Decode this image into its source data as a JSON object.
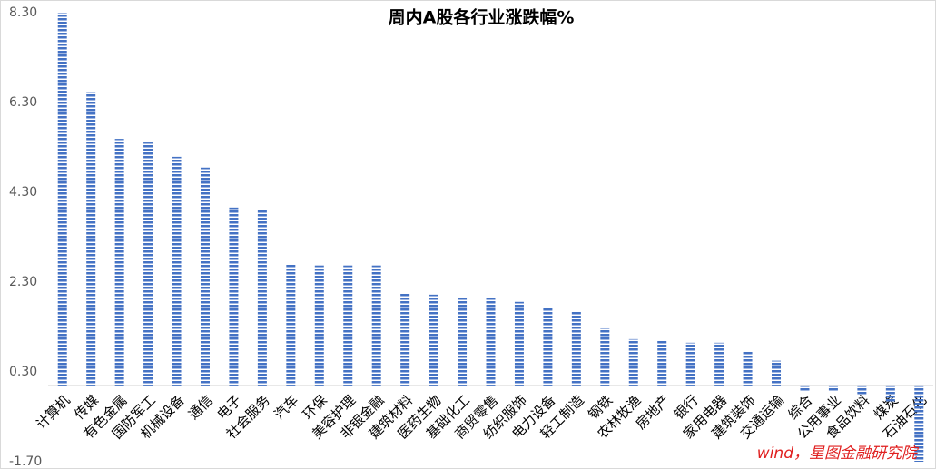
{
  "chart_data": {
    "type": "bar",
    "title": "周内A股各行业涨跌幅%",
    "categories": [
      "计算机",
      "传媒",
      "有色金属",
      "国防军工",
      "机械设备",
      "通信",
      "电子",
      "社会服务",
      "汽车",
      "环保",
      "美容护理",
      "非银金融",
      "建筑材料",
      "医药生物",
      "基础化工",
      "商贸零售",
      "纺织服饰",
      "电力设备",
      "轻工制造",
      "钢铁",
      "农林牧渔",
      "房地产",
      "银行",
      "家用电器",
      "建筑装饰",
      "交通运输",
      "综合",
      "公用事业",
      "食品饮料",
      "煤炭",
      "石油石化"
    ],
    "values": [
      8.3,
      6.53,
      5.49,
      5.41,
      5.09,
      4.85,
      3.96,
      3.92,
      2.69,
      2.67,
      2.67,
      2.67,
      2.04,
      2.02,
      1.98,
      1.94,
      1.86,
      1.74,
      1.66,
      1.27,
      1.03,
      1.01,
      0.95,
      0.95,
      0.77,
      0.55,
      -0.14,
      -0.14,
      -0.22,
      -0.36,
      -1.7
    ],
    "color": "#4472c4",
    "ylim": [
      -1.7,
      8.3
    ],
    "yticks": [
      {
        "value": -1.7,
        "label": "-1.70"
      },
      {
        "value": 0.3,
        "label": "0.30"
      },
      {
        "value": 2.3,
        "label": "2.30"
      },
      {
        "value": 4.3,
        "label": "4.30"
      },
      {
        "value": 6.3,
        "label": "6.30"
      },
      {
        "value": 8.3,
        "label": "8.30"
      }
    ],
    "grid": false,
    "source": "wind，星图金融研究院"
  }
}
